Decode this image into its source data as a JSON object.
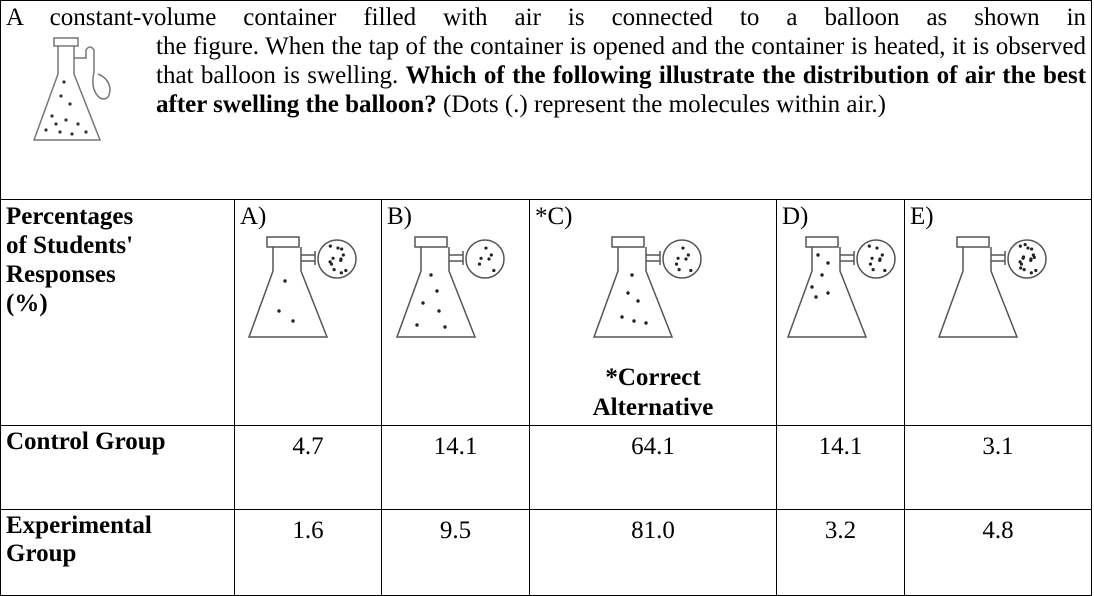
{
  "question": {
    "first_line": "A constant-volume container filled with air is connected to a balloon as shown in",
    "rest": "the figure.  When the tap of the container is opened and the container is heated, it is observed that balloon is swelling. ",
    "bold": "Which of the following illustrate the distribution of air the best after swelling the balloon?",
    "note": " (Dots (.) represent the molecules within air.)"
  },
  "table": {
    "header_lines": [
      "Percentages",
      "of Students'",
      "Responses",
      "(%)"
    ],
    "options": [
      "A)",
      "B)",
      "*C)",
      "D)",
      "E)"
    ],
    "correct_note": "*Correct Alternative",
    "rows": [
      [
        "Control Group",
        "4.7",
        "14.1",
        "64.1",
        "14.1",
        "3.1"
      ],
      [
        "Experimental Group",
        "1.6",
        "9.5",
        "81.0",
        "3.2",
        "4.8"
      ]
    ]
  }
}
